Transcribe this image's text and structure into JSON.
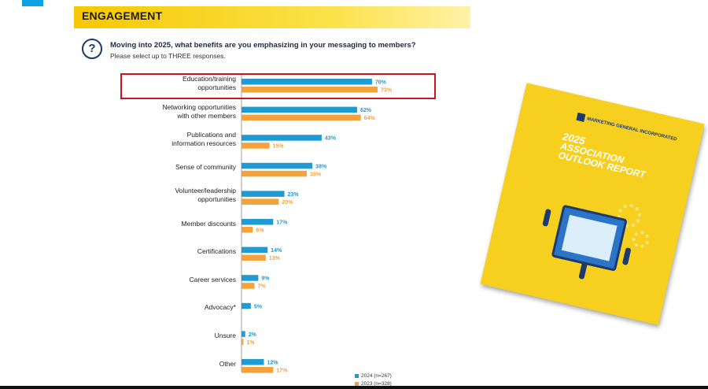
{
  "header": {
    "title": "ENGAGEMENT"
  },
  "question": {
    "icon": "question-bubble-icon",
    "text": "Moving into 2025, what benefits are you emphasizing in your messaging to members?",
    "sub": "Please select up to THREE responses."
  },
  "colors": {
    "series_2024": "#1f9ad2",
    "series_2023": "#f3a23c",
    "highlight": "#d0131f",
    "header": "#f6c800"
  },
  "chart_data": {
    "type": "bar",
    "orientation": "horizontal",
    "categories": [
      "Education/training\nopportunities",
      "Networking opportunities\nwith other members",
      "Publications and\ninformation resources",
      "Sense of community",
      "Volunteer/leadership\nopportunities",
      "Member discounts",
      "Certifications",
      "Career services",
      "Advocacy*",
      "Unsure",
      "Other"
    ],
    "series": [
      {
        "name": "2024 (n=267)",
        "values": [
          70,
          62,
          43,
          38,
          23,
          17,
          14,
          9,
          5,
          2,
          12
        ]
      },
      {
        "name": "2023 (n=328)",
        "values": [
          73,
          64,
          15,
          35,
          20,
          6,
          13,
          7,
          null,
          1,
          17
        ]
      }
    ],
    "value_suffix": "%",
    "highlighted_category_index": 0,
    "legend_position": "bottom-right"
  },
  "report_cover": {
    "brand": "MARKETING GENERAL INCORPORATED",
    "year": "2025",
    "title": "ASSOCIATION OUTLOOK REPORT"
  }
}
